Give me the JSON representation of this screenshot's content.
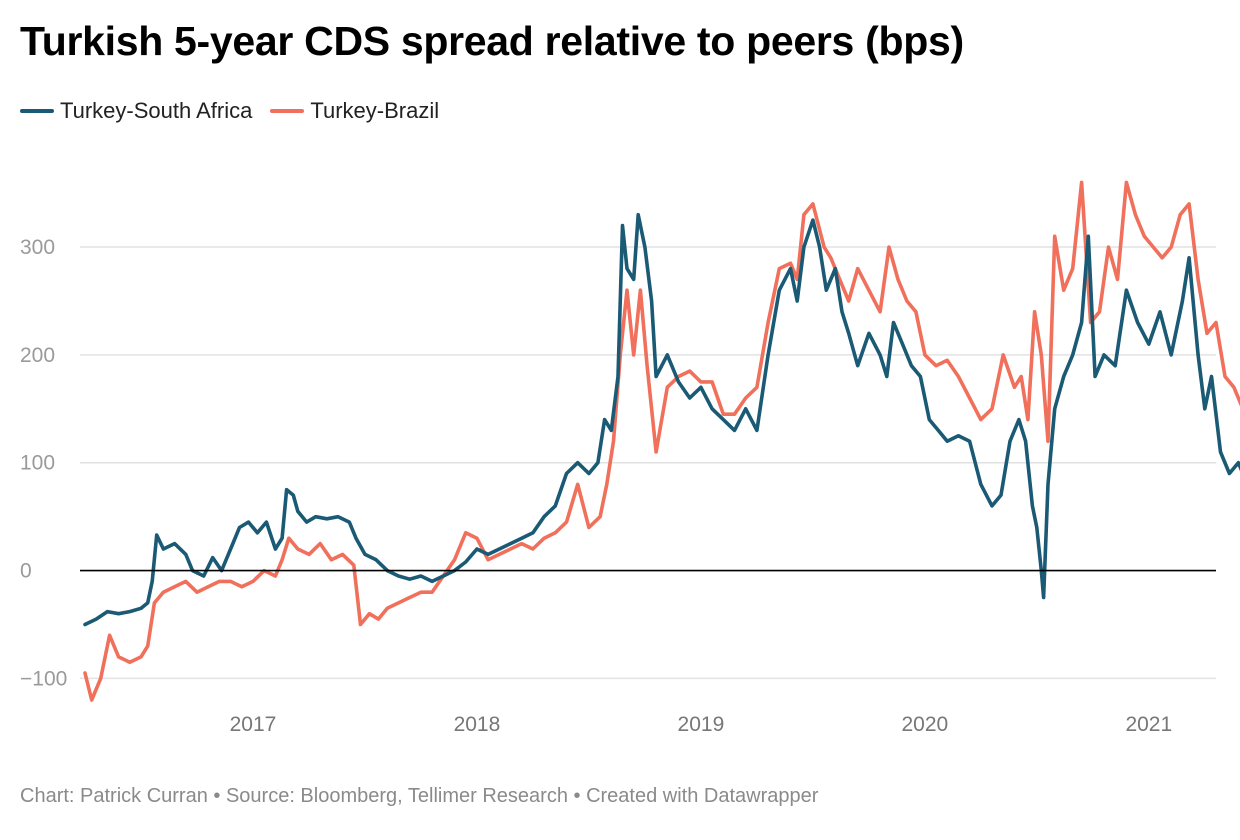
{
  "title": "Turkish 5-year CDS spread relative to peers (bps)",
  "footer": "Chart: Patrick Curran • Source: Bloomberg, Tellimer Research • Created with Datawrapper",
  "chart_data": {
    "type": "line",
    "title": "Turkish 5-year CDS spread relative to peers (bps)",
    "xlabel": "",
    "ylabel": "",
    "xlim": [
      2016.25,
      2021.3
    ],
    "ylim": [
      -120,
      390
    ],
    "x_ticks": [
      2017,
      2018,
      2019,
      2020,
      2021
    ],
    "x_tick_labels": [
      "2017",
      "2018",
      "2019",
      "2020",
      "2021"
    ],
    "y_ticks": [
      -100,
      0,
      100,
      200,
      300
    ],
    "y_tick_labels": [
      "−100",
      "0",
      "100",
      "200",
      "300"
    ],
    "grid": true,
    "legend_position": "top-left",
    "series": [
      {
        "name": "Turkey-South Africa",
        "color": "#1a5a74",
        "points": [
          [
            2016.25,
            -50
          ],
          [
            2016.3,
            -45
          ],
          [
            2016.35,
            -38
          ],
          [
            2016.4,
            -40
          ],
          [
            2016.45,
            -38
          ],
          [
            2016.5,
            -35
          ],
          [
            2016.53,
            -30
          ],
          [
            2016.55,
            -10
          ],
          [
            2016.57,
            33
          ],
          [
            2016.6,
            20
          ],
          [
            2016.65,
            25
          ],
          [
            2016.7,
            15
          ],
          [
            2016.73,
            0
          ],
          [
            2016.78,
            -5
          ],
          [
            2016.82,
            12
          ],
          [
            2016.86,
            0
          ],
          [
            2016.9,
            20
          ],
          [
            2016.94,
            40
          ],
          [
            2016.98,
            45
          ],
          [
            2017.02,
            35
          ],
          [
            2017.06,
            45
          ],
          [
            2017.1,
            20
          ],
          [
            2017.13,
            30
          ],
          [
            2017.15,
            75
          ],
          [
            2017.18,
            70
          ],
          [
            2017.2,
            55
          ],
          [
            2017.24,
            45
          ],
          [
            2017.28,
            50
          ],
          [
            2017.33,
            48
          ],
          [
            2017.38,
            50
          ],
          [
            2017.43,
            45
          ],
          [
            2017.46,
            30
          ],
          [
            2017.5,
            15
          ],
          [
            2017.55,
            10
          ],
          [
            2017.6,
            0
          ],
          [
            2017.65,
            -5
          ],
          [
            2017.7,
            -8
          ],
          [
            2017.75,
            -5
          ],
          [
            2017.8,
            -10
          ],
          [
            2017.85,
            -5
          ],
          [
            2017.9,
            0
          ],
          [
            2017.95,
            8
          ],
          [
            2018.0,
            20
          ],
          [
            2018.05,
            15
          ],
          [
            2018.1,
            20
          ],
          [
            2018.15,
            25
          ],
          [
            2018.2,
            30
          ],
          [
            2018.25,
            35
          ],
          [
            2018.3,
            50
          ],
          [
            2018.35,
            60
          ],
          [
            2018.4,
            90
          ],
          [
            2018.45,
            100
          ],
          [
            2018.5,
            90
          ],
          [
            2018.54,
            100
          ],
          [
            2018.57,
            140
          ],
          [
            2018.6,
            130
          ],
          [
            2018.63,
            180
          ],
          [
            2018.65,
            320
          ],
          [
            2018.67,
            280
          ],
          [
            2018.7,
            270
          ],
          [
            2018.72,
            330
          ],
          [
            2018.75,
            300
          ],
          [
            2018.78,
            250
          ],
          [
            2018.8,
            180
          ],
          [
            2018.85,
            200
          ],
          [
            2018.9,
            175
          ],
          [
            2018.95,
            160
          ],
          [
            2019.0,
            170
          ],
          [
            2019.05,
            150
          ],
          [
            2019.1,
            140
          ],
          [
            2019.15,
            130
          ],
          [
            2019.2,
            150
          ],
          [
            2019.25,
            130
          ],
          [
            2019.3,
            200
          ],
          [
            2019.35,
            260
          ],
          [
            2019.4,
            280
          ],
          [
            2019.43,
            250
          ],
          [
            2019.46,
            300
          ],
          [
            2019.5,
            325
          ],
          [
            2019.53,
            300
          ],
          [
            2019.56,
            260
          ],
          [
            2019.6,
            280
          ],
          [
            2019.63,
            240
          ],
          [
            2019.66,
            220
          ],
          [
            2019.7,
            190
          ],
          [
            2019.75,
            220
          ],
          [
            2019.8,
            200
          ],
          [
            2019.83,
            180
          ],
          [
            2019.86,
            230
          ],
          [
            2019.9,
            210
          ],
          [
            2019.94,
            190
          ],
          [
            2019.98,
            180
          ],
          [
            2020.02,
            140
          ],
          [
            2020.06,
            130
          ],
          [
            2020.1,
            120
          ],
          [
            2020.15,
            125
          ],
          [
            2020.2,
            120
          ],
          [
            2020.25,
            80
          ],
          [
            2020.3,
            60
          ],
          [
            2020.34,
            70
          ],
          [
            2020.38,
            120
          ],
          [
            2020.42,
            140
          ],
          [
            2020.45,
            120
          ],
          [
            2020.48,
            60
          ],
          [
            2020.5,
            40
          ],
          [
            2020.52,
            0
          ],
          [
            2020.53,
            -25
          ],
          [
            2020.55,
            80
          ],
          [
            2020.58,
            150
          ],
          [
            2020.62,
            180
          ],
          [
            2020.66,
            200
          ],
          [
            2020.7,
            230
          ],
          [
            2020.73,
            310
          ],
          [
            2020.76,
            180
          ],
          [
            2020.8,
            200
          ],
          [
            2020.85,
            190
          ],
          [
            2020.9,
            260
          ],
          [
            2020.95,
            230
          ],
          [
            2021.0,
            210
          ],
          [
            2021.05,
            240
          ],
          [
            2021.1,
            200
          ],
          [
            2021.15,
            250
          ],
          [
            2021.18,
            290
          ],
          [
            2021.22,
            200
          ],
          [
            2021.25,
            150
          ],
          [
            2021.28,
            180
          ],
          [
            2021.32,
            110
          ],
          [
            2021.36,
            90
          ],
          [
            2021.4,
            100
          ],
          [
            2021.44,
            80
          ],
          [
            2021.48,
            75
          ],
          [
            2021.52,
            100
          ],
          [
            2021.55,
            110
          ],
          [
            2021.57,
            95
          ],
          [
            2021.6,
            240
          ],
          [
            2021.62,
            220
          ],
          [
            2021.65,
            200
          ]
        ]
      },
      {
        "name": "Turkey-Brazil",
        "color": "#f0705b",
        "points": [
          [
            2016.25,
            -95
          ],
          [
            2016.28,
            -120
          ],
          [
            2016.32,
            -100
          ],
          [
            2016.36,
            -60
          ],
          [
            2016.4,
            -80
          ],
          [
            2016.45,
            -85
          ],
          [
            2016.5,
            -80
          ],
          [
            2016.53,
            -70
          ],
          [
            2016.56,
            -30
          ],
          [
            2016.6,
            -20
          ],
          [
            2016.65,
            -15
          ],
          [
            2016.7,
            -10
          ],
          [
            2016.75,
            -20
          ],
          [
            2016.8,
            -15
          ],
          [
            2016.85,
            -10
          ],
          [
            2016.9,
            -10
          ],
          [
            2016.95,
            -15
          ],
          [
            2017.0,
            -10
          ],
          [
            2017.05,
            0
          ],
          [
            2017.1,
            -5
          ],
          [
            2017.13,
            10
          ],
          [
            2017.16,
            30
          ],
          [
            2017.2,
            20
          ],
          [
            2017.25,
            15
          ],
          [
            2017.3,
            25
          ],
          [
            2017.35,
            10
          ],
          [
            2017.4,
            15
          ],
          [
            2017.45,
            5
          ],
          [
            2017.48,
            -50
          ],
          [
            2017.52,
            -40
          ],
          [
            2017.56,
            -45
          ],
          [
            2017.6,
            -35
          ],
          [
            2017.65,
            -30
          ],
          [
            2017.7,
            -25
          ],
          [
            2017.75,
            -20
          ],
          [
            2017.8,
            -20
          ],
          [
            2017.85,
            -5
          ],
          [
            2017.9,
            10
          ],
          [
            2017.95,
            35
          ],
          [
            2018.0,
            30
          ],
          [
            2018.05,
            10
          ],
          [
            2018.1,
            15
          ],
          [
            2018.15,
            20
          ],
          [
            2018.2,
            25
          ],
          [
            2018.25,
            20
          ],
          [
            2018.3,
            30
          ],
          [
            2018.35,
            35
          ],
          [
            2018.4,
            45
          ],
          [
            2018.45,
            80
          ],
          [
            2018.5,
            40
          ],
          [
            2018.55,
            50
          ],
          [
            2018.58,
            80
          ],
          [
            2018.61,
            120
          ],
          [
            2018.64,
            200
          ],
          [
            2018.67,
            260
          ],
          [
            2018.7,
            200
          ],
          [
            2018.73,
            260
          ],
          [
            2018.76,
            190
          ],
          [
            2018.8,
            110
          ],
          [
            2018.85,
            170
          ],
          [
            2018.9,
            180
          ],
          [
            2018.95,
            185
          ],
          [
            2019.0,
            175
          ],
          [
            2019.05,
            175
          ],
          [
            2019.1,
            145
          ],
          [
            2019.15,
            145
          ],
          [
            2019.2,
            160
          ],
          [
            2019.25,
            170
          ],
          [
            2019.3,
            230
          ],
          [
            2019.35,
            280
          ],
          [
            2019.4,
            285
          ],
          [
            2019.43,
            270
          ],
          [
            2019.46,
            330
          ],
          [
            2019.5,
            340
          ],
          [
            2019.55,
            300
          ],
          [
            2019.58,
            290
          ],
          [
            2019.62,
            270
          ],
          [
            2019.66,
            250
          ],
          [
            2019.7,
            280
          ],
          [
            2019.75,
            260
          ],
          [
            2019.8,
            240
          ],
          [
            2019.84,
            300
          ],
          [
            2019.88,
            270
          ],
          [
            2019.92,
            250
          ],
          [
            2019.96,
            240
          ],
          [
            2020.0,
            200
          ],
          [
            2020.05,
            190
          ],
          [
            2020.1,
            195
          ],
          [
            2020.15,
            180
          ],
          [
            2020.2,
            160
          ],
          [
            2020.25,
            140
          ],
          [
            2020.3,
            150
          ],
          [
            2020.35,
            200
          ],
          [
            2020.4,
            170
          ],
          [
            2020.43,
            180
          ],
          [
            2020.46,
            140
          ],
          [
            2020.49,
            240
          ],
          [
            2020.52,
            200
          ],
          [
            2020.55,
            120
          ],
          [
            2020.58,
            310
          ],
          [
            2020.62,
            260
          ],
          [
            2020.66,
            280
          ],
          [
            2020.7,
            360
          ],
          [
            2020.74,
            230
          ],
          [
            2020.78,
            240
          ],
          [
            2020.82,
            300
          ],
          [
            2020.86,
            270
          ],
          [
            2020.9,
            360
          ],
          [
            2020.94,
            330
          ],
          [
            2020.98,
            310
          ],
          [
            2021.02,
            300
          ],
          [
            2021.06,
            290
          ],
          [
            2021.1,
            300
          ],
          [
            2021.14,
            330
          ],
          [
            2021.18,
            340
          ],
          [
            2021.22,
            270
          ],
          [
            2021.26,
            220
          ],
          [
            2021.3,
            230
          ],
          [
            2021.34,
            180
          ],
          [
            2021.38,
            170
          ],
          [
            2021.42,
            150
          ],
          [
            2021.46,
            140
          ],
          [
            2021.5,
            130
          ],
          [
            2021.54,
            125
          ],
          [
            2021.57,
            120
          ],
          [
            2021.6,
            260
          ],
          [
            2021.62,
            240
          ],
          [
            2021.65,
            220
          ]
        ]
      }
    ],
    "reference_line": {
      "y": 0,
      "color": "#000000"
    }
  }
}
